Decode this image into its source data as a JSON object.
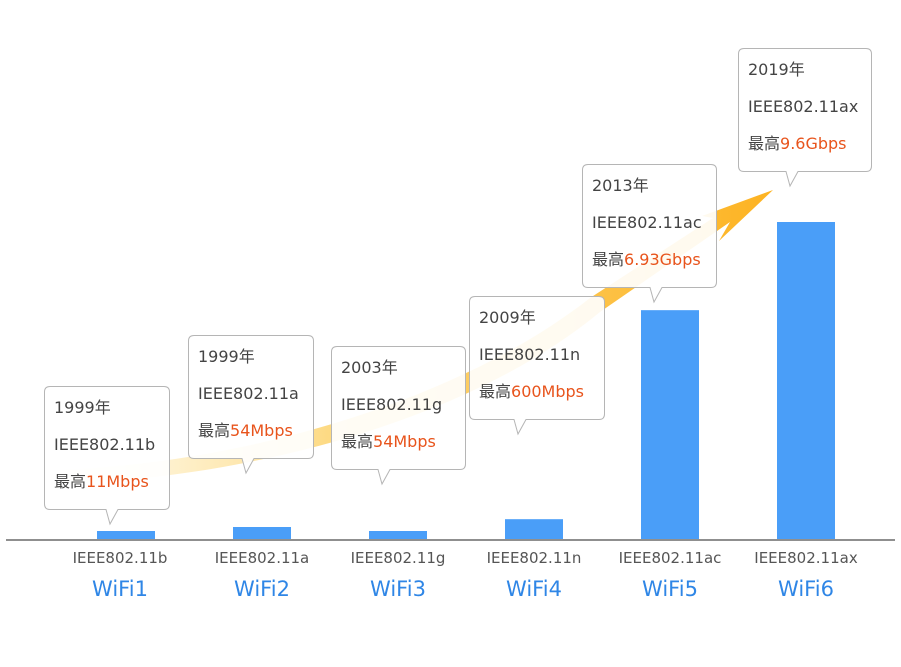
{
  "chart_data": {
    "type": "bar",
    "categories": [
      "WiFi1",
      "WiFi2",
      "WiFi3",
      "WiFi4",
      "WiFi5",
      "WiFi6"
    ],
    "standards": [
      "IEEE802.11b",
      "IEEE802.11a",
      "IEEE802.11g",
      "IEEE802.11n",
      "IEEE802.11ac",
      "IEEE802.11ax"
    ],
    "values": [
      0.011,
      0.054,
      0.054,
      0.6,
      6.93,
      9.6
    ],
    "unit": "Gbps",
    "bar_color": "#4a9ef8",
    "arrow_color": "#fdb927",
    "annotations": [
      {
        "year": "1999年",
        "standard": "IEEE802.11b",
        "prefix": "最高",
        "speed": "11Mbps"
      },
      {
        "year": "1999年",
        "standard": "IEEE802.11a",
        "prefix": "最高",
        "speed": "54Mbps"
      },
      {
        "year": "2003年",
        "standard": "IEEE802.11g",
        "prefix": "最高",
        "speed": "54Mbps"
      },
      {
        "year": "2009年",
        "standard": "IEEE802.11n",
        "prefix": "最高",
        "speed": "600Mbps"
      },
      {
        "year": "2013年",
        "standard": "IEEE802.11ac",
        "prefix": "最高",
        "speed": "6.93Gbps"
      },
      {
        "year": "2019年",
        "standard": "IEEE802.11ax",
        "prefix": "最高",
        "speed": "9.6Gbps"
      }
    ]
  }
}
